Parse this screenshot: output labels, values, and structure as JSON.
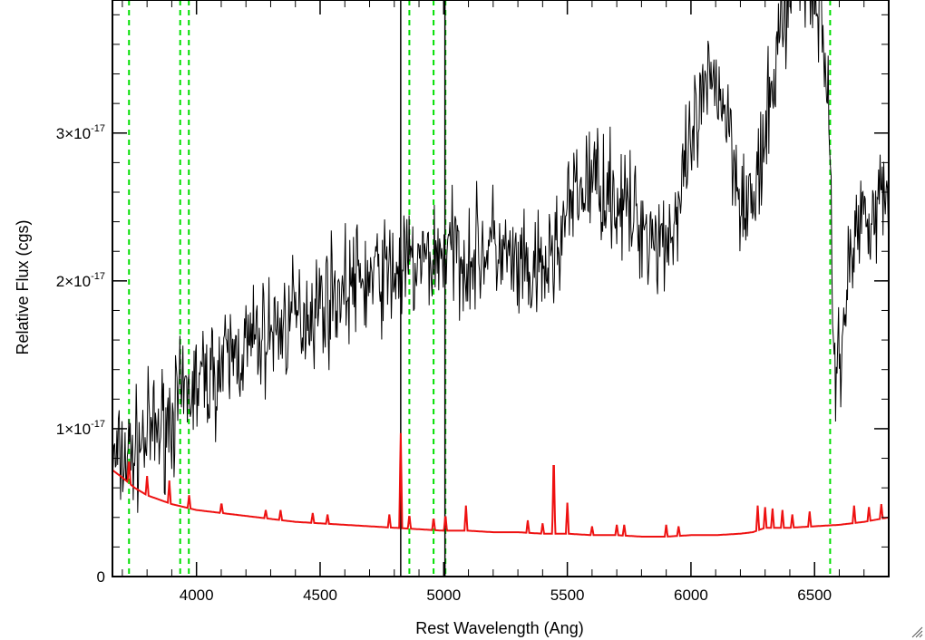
{
  "chart_data": {
    "type": "line",
    "title": "",
    "xlabel": "Rest Wavelength (Ang)",
    "ylabel": "Relative Flux (cgs)",
    "xlim": [
      3660,
      6800
    ],
    "ylim": [
      0,
      3.9e-17
    ],
    "x_ticks": [
      {
        "value": 4000,
        "label": "4000"
      },
      {
        "value": 4500,
        "label": "4500"
      },
      {
        "value": 5000,
        "label": "5000"
      },
      {
        "value": 5500,
        "label": "5500"
      },
      {
        "value": 6000,
        "label": "6000"
      },
      {
        "value": 6500,
        "label": "6500"
      }
    ],
    "y_ticks": [
      {
        "value": 0,
        "base": "0",
        "exp": ""
      },
      {
        "value": 1e-17,
        "base": "1×10",
        "exp": "-17"
      },
      {
        "value": 2e-17,
        "base": "2×10",
        "exp": "-17"
      },
      {
        "value": 3e-17,
        "base": "3×10",
        "exp": "-17"
      }
    ],
    "x_minor_step": 100,
    "y_minor_step": 2e-18,
    "grid": false,
    "legend": "none",
    "vertical_lines": [
      {
        "x": 3727,
        "style": "dashed",
        "color": "#00e000"
      },
      {
        "x": 3934,
        "style": "dashed",
        "color": "#00e000"
      },
      {
        "x": 3969,
        "style": "dashed",
        "color": "#00e000"
      },
      {
        "x": 4861,
        "style": "dashed",
        "color": "#00e000"
      },
      {
        "x": 4959,
        "style": "dashed",
        "color": "#00e000"
      },
      {
        "x": 5007,
        "style": "dashed",
        "color": "#00e000"
      },
      {
        "x": 6563,
        "style": "dashed",
        "color": "#00e000"
      },
      {
        "x": 4826,
        "style": "solid",
        "color": "#000000"
      },
      {
        "x": 5005,
        "style": "solid",
        "color": "#000000"
      }
    ],
    "series": [
      {
        "color": "#000000",
        "style": "noisy",
        "noise_seed": 7,
        "x": [
          3660,
          3700,
          3750,
          3800,
          3850,
          3900,
          3950,
          4000,
          4050,
          4100,
          4150,
          4200,
          4250,
          4300,
          4350,
          4400,
          4450,
          4500,
          4550,
          4600,
          4650,
          4700,
          4750,
          4800,
          4850,
          4900,
          4950,
          5000,
          5050,
          5100,
          5150,
          5200,
          5250,
          5300,
          5350,
          5400,
          5450,
          5500,
          5550,
          5600,
          5650,
          5700,
          5750,
          5800,
          5850,
          5900,
          5950,
          6000,
          6050,
          6100,
          6150,
          6200,
          6250,
          6300,
          6350,
          6400,
          6450,
          6500,
          6550,
          6580,
          6600,
          6650,
          6700,
          6750,
          6800
        ],
        "y": [
          7.5e-18,
          8e-18,
          8.5e-18,
          9.5e-18,
          1e-17,
          1.1e-17,
          1.2e-17,
          1.3e-17,
          1.35e-17,
          1.4e-17,
          1.5e-17,
          1.55e-17,
          1.6e-17,
          1.65e-17,
          1.7e-17,
          1.75e-17,
          1.8e-17,
          1.85e-17,
          1.9e-17,
          1.95e-17,
          2e-17,
          2e-17,
          2.05e-17,
          2.05e-17,
          2.1e-17,
          2.1e-17,
          2.15e-17,
          2.2e-17,
          2.2e-17,
          2.15e-17,
          2.2e-17,
          2.25e-17,
          2.15e-17,
          2.05e-17,
          2e-17,
          2.05e-17,
          2.2e-17,
          2.45e-17,
          2.6e-17,
          2.7e-17,
          2.65e-17,
          2.55e-17,
          2.45e-17,
          2.4e-17,
          2.3e-17,
          2.3e-17,
          2.45e-17,
          2.9e-17,
          3.2e-17,
          3.4e-17,
          3.1e-17,
          2.6e-17,
          2.5e-17,
          2.9e-17,
          3.6e-17,
          4e-17,
          4.1e-17,
          4e-17,
          3.5e-17,
          1.4e-17,
          1.5e-17,
          2.2e-17,
          2.5e-17,
          2.5e-17,
          2.6e-17
        ]
      },
      {
        "color": "#ee1111",
        "style": "lines",
        "x": [
          3660,
          3700,
          3750,
          3800,
          3850,
          3900,
          3950,
          4000,
          4100,
          4200,
          4300,
          4400,
          4500,
          4600,
          4700,
          4800,
          4900,
          5000,
          5100,
          5200,
          5300,
          5400,
          5500,
          5600,
          5700,
          5800,
          5900,
          6000,
          6100,
          6200,
          6250,
          6300,
          6400,
          6500,
          6600,
          6700,
          6800
        ],
        "y": [
          7.2e-18,
          6.7e-18,
          6e-18,
          5.5e-18,
          5.2e-18,
          4.9e-18,
          4.7e-18,
          4.5e-18,
          4.3e-18,
          4.1e-18,
          3.9e-18,
          3.7e-18,
          3.6e-18,
          3.5e-18,
          3.4e-18,
          3.3e-18,
          3.2e-18,
          3.1e-18,
          3.1e-18,
          3e-18,
          3e-18,
          2.9e-18,
          2.9e-18,
          2.8e-18,
          2.8e-18,
          2.7e-18,
          2.7e-18,
          2.8e-18,
          2.8e-18,
          2.9e-18,
          3e-18,
          3.3e-18,
          3.3e-18,
          3.4e-18,
          3.5e-18,
          3.7e-18,
          4e-18
        ],
        "peaks": [
          {
            "x": 3727,
            "y": 8e-18
          },
          {
            "x": 3800,
            "y": 6.8e-18
          },
          {
            "x": 3890,
            "y": 6.5e-18
          },
          {
            "x": 3970,
            "y": 5.5e-18
          },
          {
            "x": 4101,
            "y": 5e-18
          },
          {
            "x": 4280,
            "y": 4.5e-18
          },
          {
            "x": 4340,
            "y": 4.5e-18
          },
          {
            "x": 4470,
            "y": 4.3e-18
          },
          {
            "x": 4530,
            "y": 4.2e-18
          },
          {
            "x": 4780,
            "y": 4.2e-18
          },
          {
            "x": 4826,
            "y": 9.7e-18
          },
          {
            "x": 4861,
            "y": 4.2e-18
          },
          {
            "x": 4959,
            "y": 4e-18
          },
          {
            "x": 5007,
            "y": 4.2e-18
          },
          {
            "x": 5090,
            "y": 4.8e-18
          },
          {
            "x": 5340,
            "y": 3.8e-18
          },
          {
            "x": 5400,
            "y": 3.6e-18
          },
          {
            "x": 5445,
            "y": 8.4e-18
          },
          {
            "x": 5500,
            "y": 5e-18
          },
          {
            "x": 5600,
            "y": 3.4e-18
          },
          {
            "x": 5700,
            "y": 3.5e-18
          },
          {
            "x": 5730,
            "y": 3.5e-18
          },
          {
            "x": 5900,
            "y": 3.5e-18
          },
          {
            "x": 5950,
            "y": 3.4e-18
          },
          {
            "x": 6270,
            "y": 4.8e-18
          },
          {
            "x": 6300,
            "y": 4.7e-18
          },
          {
            "x": 6330,
            "y": 4.6e-18
          },
          {
            "x": 6370,
            "y": 4.5e-18
          },
          {
            "x": 6410,
            "y": 4.2e-18
          },
          {
            "x": 6480,
            "y": 4.4e-18
          },
          {
            "x": 6660,
            "y": 4.8e-18
          },
          {
            "x": 6720,
            "y": 4.7e-18
          },
          {
            "x": 6770,
            "y": 4.9e-18
          }
        ]
      }
    ]
  }
}
